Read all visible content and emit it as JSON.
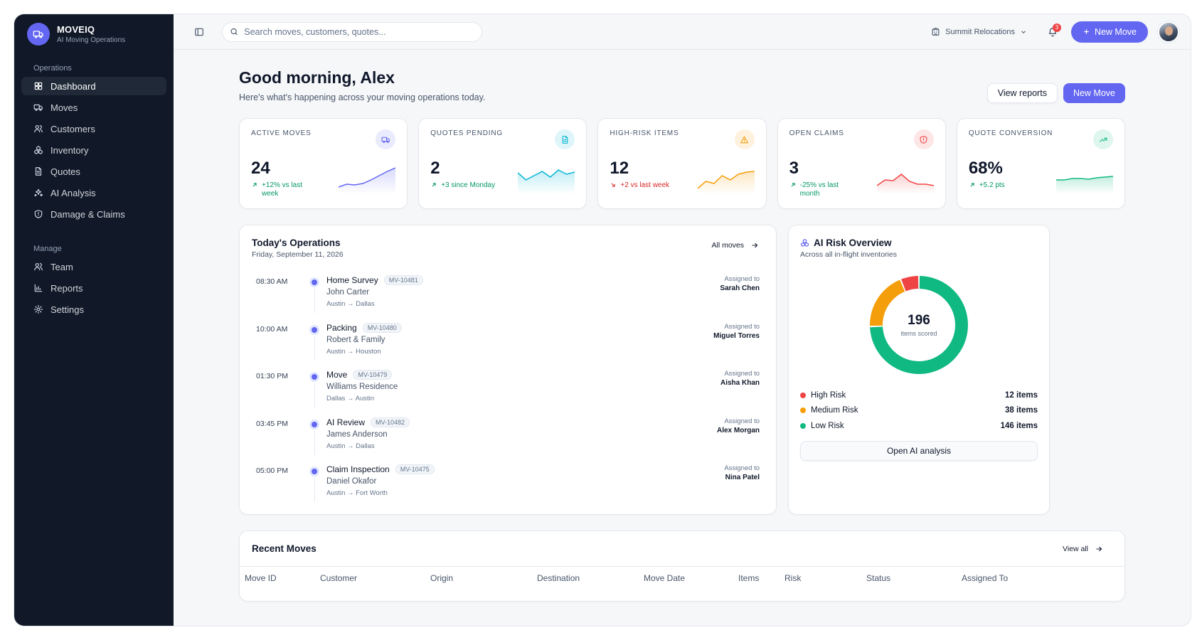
{
  "brand": {
    "name": "MOVEIQ",
    "subtitle": "AI Moving Operations"
  },
  "sidebar": {
    "section_operations": "Operations",
    "section_manage": "Manage",
    "items": [
      {
        "label": "Dashboard",
        "icon": "grid-icon",
        "active": true
      },
      {
        "label": "Moves",
        "icon": "truck-icon"
      },
      {
        "label": "Customers",
        "icon": "users-icon"
      },
      {
        "label": "Inventory",
        "icon": "boxes-icon"
      },
      {
        "label": "Quotes",
        "icon": "document-icon"
      },
      {
        "label": "AI Analysis",
        "icon": "sparkles-icon"
      },
      {
        "label": "Damage & Claims",
        "icon": "shield-icon"
      }
    ],
    "manage_items": [
      {
        "label": "Team",
        "icon": "team-icon"
      },
      {
        "label": "Reports",
        "icon": "bar-chart-icon"
      },
      {
        "label": "Settings",
        "icon": "gear-icon"
      }
    ]
  },
  "topbar": {
    "search_placeholder": "Search moves, customers, quotes...",
    "org_name": "Summit Relocations",
    "notification_count": "3",
    "new_move_label": "New Move"
  },
  "greeting": {
    "title": "Good morning, Alex",
    "subtitle": "Here's what's happening across your moving operations today.",
    "view_reports": "View reports",
    "new_move": "New Move"
  },
  "stats": [
    {
      "label": "Active Moves",
      "value": "24",
      "delta": "+12% vs last week",
      "trend": "up",
      "color": "#6366f1",
      "icon": "truck-icon"
    },
    {
      "label": "Quotes Pending",
      "value": "2",
      "delta": "+3 since Monday",
      "trend": "up",
      "color": "#06b6d4",
      "icon": "document-icon"
    },
    {
      "label": "High-Risk Items",
      "value": "12",
      "delta": "+2 vs last week",
      "trend": "down",
      "color": "#f59e0b",
      "icon": "warning-icon"
    },
    {
      "label": "Open Claims",
      "value": "3",
      "delta": "-25% vs last month",
      "trend": "up",
      "color": "#ef4444",
      "icon": "shield-icon"
    },
    {
      "label": "Quote Conversion",
      "value": "68%",
      "delta": "+5.2 pts",
      "trend": "up",
      "color": "#10b981",
      "icon": "trend-up-icon"
    }
  ],
  "operations": {
    "title": "Today's Operations",
    "date": "Friday, September 11, 2026",
    "all_moves": "All moves",
    "assigned_label": "Assigned to",
    "items": [
      {
        "time": "08:30 AM",
        "type": "Home Survey",
        "id": "MV-10481",
        "customer": "John Carter",
        "route": "Austin → Dallas",
        "assignee": "Sarah Chen"
      },
      {
        "time": "10:00 AM",
        "type": "Packing",
        "id": "MV-10480",
        "customer": "Robert & Family",
        "route": "Austin → Houston",
        "assignee": "Miguel Torres"
      },
      {
        "time": "01:30 PM",
        "type": "Move",
        "id": "MV-10479",
        "customer": "Williams Residence",
        "route": "Dallas → Austin",
        "assignee": "Aisha Khan"
      },
      {
        "time": "03:45 PM",
        "type": "AI Review",
        "id": "MV-10482",
        "customer": "James Anderson",
        "route": "Austin → Dallas",
        "assignee": "Alex Morgan"
      },
      {
        "time": "05:00 PM",
        "type": "Claim Inspection",
        "id": "MV-10475",
        "customer": "Daniel Okafor",
        "route": "Austin → Fort Worth",
        "assignee": "Nina Patel"
      }
    ]
  },
  "risk": {
    "title": "AI Risk Overview",
    "subtitle": "Across all in-flight inventories",
    "total": "196",
    "total_label": "items scored",
    "button": "Open AI analysis",
    "levels": [
      {
        "label": "High Risk",
        "value": "12 items",
        "count": 12,
        "color": "#ef4444"
      },
      {
        "label": "Medium Risk",
        "value": "38 items",
        "count": 38,
        "color": "#f59e0b"
      },
      {
        "label": "Low Risk",
        "value": "146 items",
        "count": 146,
        "color": "#10b981"
      }
    ]
  },
  "recent": {
    "title": "Recent Moves",
    "view_all": "View all",
    "columns": [
      "Move ID",
      "Customer",
      "Origin",
      "Destination",
      "Move Date",
      "Items",
      "Risk",
      "Status",
      "Assigned To"
    ]
  }
}
